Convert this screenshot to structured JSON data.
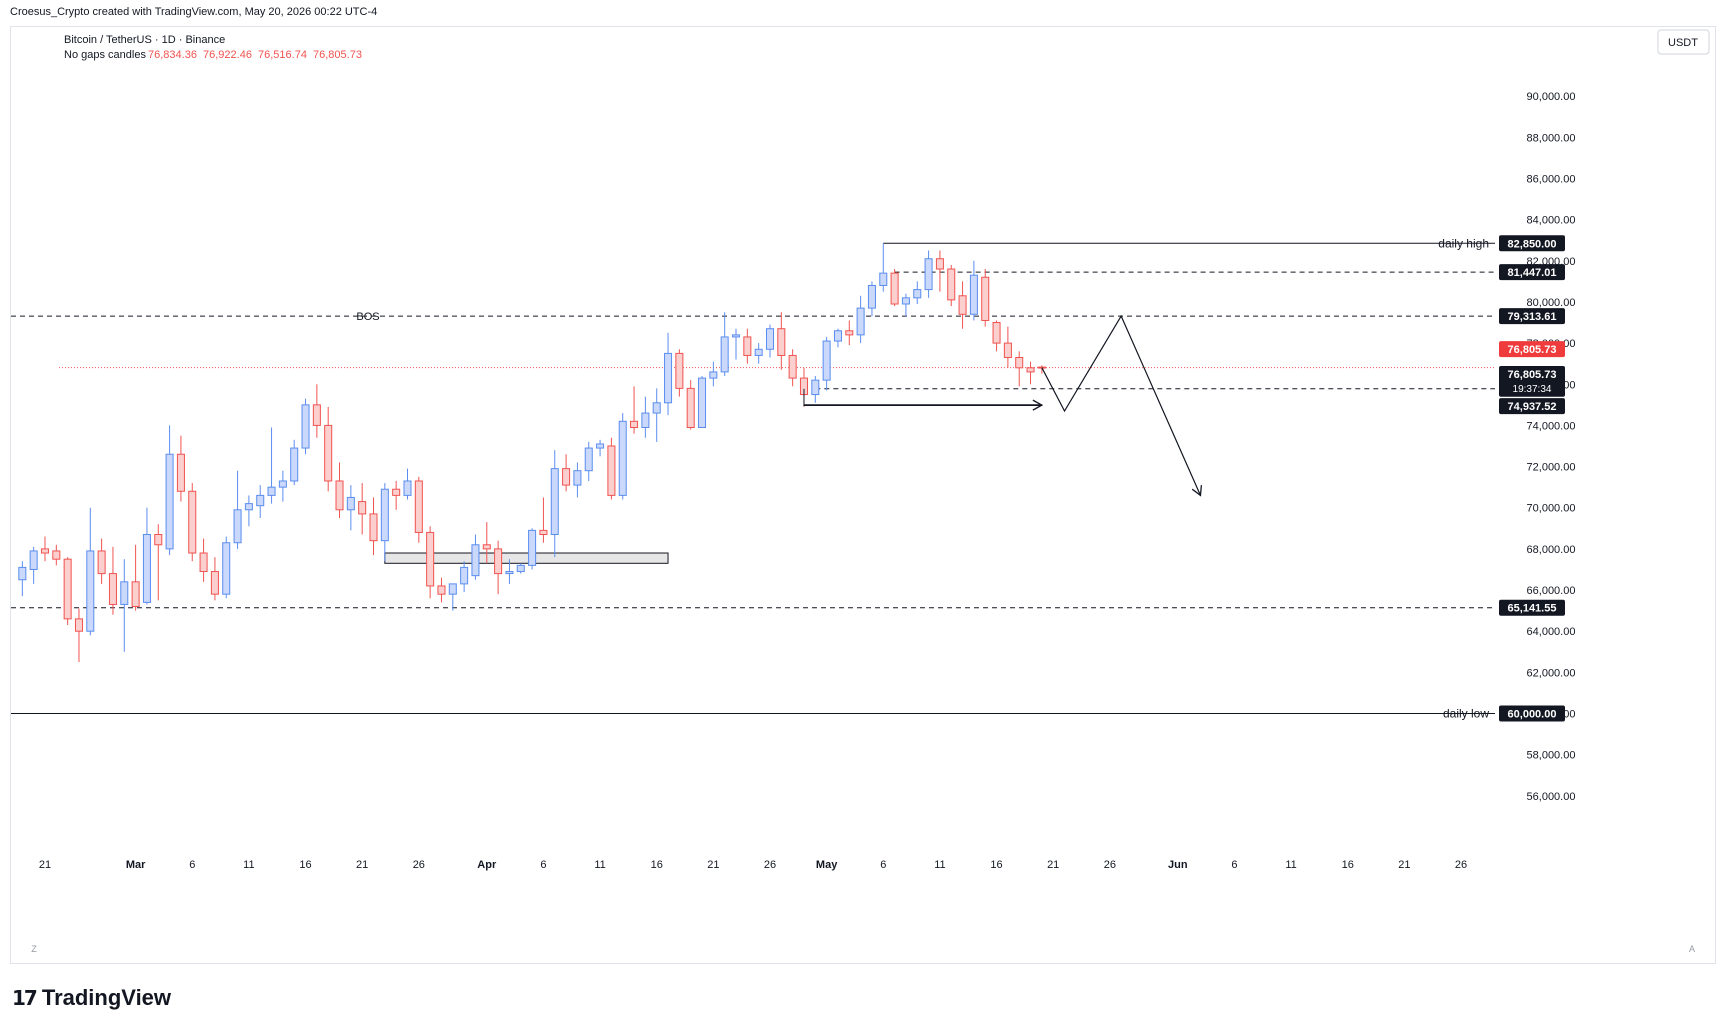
{
  "header": {
    "attribution": "Croesus_Crypto created with TradingView.com, May 20, 2026 00:22 UTC-4"
  },
  "footer": {
    "logo_mark": "𝟭𝟳",
    "logo_text": "TradingView"
  },
  "legend": {
    "symbol": "Bitcoin / TetherUS · 1D · Binance",
    "candle_type": "No gaps candles",
    "open": "76,834.36",
    "high": "76,922.46",
    "low": "76,516.74",
    "close": "76,805.73"
  },
  "currency_button": "USDT",
  "axis_corner_left": "Z",
  "axis_corner_right": "A",
  "colors": {
    "up": "#5b8def",
    "down": "#f05350",
    "text": "#131722",
    "price_tag": "#ef3b3b",
    "grid": "#e0e3eb"
  },
  "chart_data": {
    "type": "candlestick",
    "title": "Bitcoin / TetherUS · 1D · Binance",
    "ylim": [
      54000,
      92000
    ],
    "y_ticks": [
      "90,000.00",
      "88,000.00",
      "86,000.00",
      "84,000.00",
      "82,000.00",
      "80,000.00",
      "78,000.00",
      "76,000.00",
      "74,000.00",
      "72,000.00",
      "70,000.00",
      "68,000.00",
      "66,000.00",
      "64,000.00",
      "62,000.00",
      "60,000.00",
      "58,000.00",
      "56,000.00"
    ],
    "x_range": [
      "2026-02-18",
      "2026-06-29"
    ],
    "x_ticks": [
      {
        "date": "2026-02-21",
        "label": "21"
      },
      {
        "date": "2026-03-01",
        "label": "Mar"
      },
      {
        "date": "2026-03-06",
        "label": "6"
      },
      {
        "date": "2026-03-11",
        "label": "11"
      },
      {
        "date": "2026-03-16",
        "label": "16"
      },
      {
        "date": "2026-03-21",
        "label": "21"
      },
      {
        "date": "2026-03-26",
        "label": "26"
      },
      {
        "date": "2026-04-01",
        "label": "Apr"
      },
      {
        "date": "2026-04-06",
        "label": "6"
      },
      {
        "date": "2026-04-11",
        "label": "11"
      },
      {
        "date": "2026-04-16",
        "label": "16"
      },
      {
        "date": "2026-04-21",
        "label": "21"
      },
      {
        "date": "2026-04-26",
        "label": "26"
      },
      {
        "date": "2026-05-01",
        "label": "May"
      },
      {
        "date": "2026-05-06",
        "label": "6"
      },
      {
        "date": "2026-05-11",
        "label": "11"
      },
      {
        "date": "2026-05-16",
        "label": "16"
      },
      {
        "date": "2026-05-21",
        "label": "21"
      },
      {
        "date": "2026-05-26",
        "label": "26"
      },
      {
        "date": "2026-06-01",
        "label": "Jun"
      },
      {
        "date": "2026-06-06",
        "label": "6"
      },
      {
        "date": "2026-06-11",
        "label": "11"
      },
      {
        "date": "2026-06-16",
        "label": "16"
      },
      {
        "date": "2026-06-21",
        "label": "21"
      },
      {
        "date": "2026-06-26",
        "label": "26"
      }
    ],
    "candles": [
      {
        "date": "2026-02-19",
        "o": 66500,
        "h": 67400,
        "l": 65700,
        "c": 67100
      },
      {
        "date": "2026-02-20",
        "o": 67000,
        "h": 68100,
        "l": 66300,
        "c": 67900
      },
      {
        "date": "2026-02-21",
        "o": 68000,
        "h": 68600,
        "l": 67400,
        "c": 67800
      },
      {
        "date": "2026-02-22",
        "o": 67900,
        "h": 68200,
        "l": 67200,
        "c": 67500
      },
      {
        "date": "2026-02-23",
        "o": 67500,
        "h": 67600,
        "l": 64300,
        "c": 64600
      },
      {
        "date": "2026-02-24",
        "o": 64600,
        "h": 65100,
        "l": 62500,
        "c": 64000
      },
      {
        "date": "2026-02-25",
        "o": 64000,
        "h": 70000,
        "l": 63800,
        "c": 67900
      },
      {
        "date": "2026-02-26",
        "o": 67900,
        "h": 68500,
        "l": 66300,
        "c": 66800
      },
      {
        "date": "2026-02-27",
        "o": 66800,
        "h": 68100,
        "l": 64800,
        "c": 65300
      },
      {
        "date": "2026-02-28",
        "o": 65300,
        "h": 67500,
        "l": 63000,
        "c": 66400
      },
      {
        "date": "2026-03-01",
        "o": 66400,
        "h": 68200,
        "l": 65000,
        "c": 65200
      },
      {
        "date": "2026-03-02",
        "o": 65400,
        "h": 70000,
        "l": 65300,
        "c": 68700
      },
      {
        "date": "2026-03-03",
        "o": 68700,
        "h": 69200,
        "l": 65500,
        "c": 68200
      },
      {
        "date": "2026-03-04",
        "o": 68000,
        "h": 74000,
        "l": 67700,
        "c": 72600
      },
      {
        "date": "2026-03-05",
        "o": 72600,
        "h": 73500,
        "l": 70300,
        "c": 70800
      },
      {
        "date": "2026-03-06",
        "o": 70800,
        "h": 71200,
        "l": 67400,
        "c": 67800
      },
      {
        "date": "2026-03-07",
        "o": 67800,
        "h": 68500,
        "l": 66400,
        "c": 66900
      },
      {
        "date": "2026-03-08",
        "o": 66900,
        "h": 67600,
        "l": 65500,
        "c": 65800
      },
      {
        "date": "2026-03-09",
        "o": 65800,
        "h": 68600,
        "l": 65600,
        "c": 68300
      },
      {
        "date": "2026-03-10",
        "o": 68300,
        "h": 71800,
        "l": 68000,
        "c": 69900
      },
      {
        "date": "2026-03-11",
        "o": 69900,
        "h": 70600,
        "l": 69100,
        "c": 70200
      },
      {
        "date": "2026-03-12",
        "o": 70100,
        "h": 71100,
        "l": 69500,
        "c": 70600
      },
      {
        "date": "2026-03-13",
        "o": 70600,
        "h": 73900,
        "l": 70200,
        "c": 71000
      },
      {
        "date": "2026-03-14",
        "o": 71000,
        "h": 71800,
        "l": 70300,
        "c": 71300
      },
      {
        "date": "2026-03-15",
        "o": 71300,
        "h": 73300,
        "l": 71100,
        "c": 72900
      },
      {
        "date": "2026-03-16",
        "o": 72900,
        "h": 75300,
        "l": 72600,
        "c": 75000
      },
      {
        "date": "2026-03-17",
        "o": 75000,
        "h": 76000,
        "l": 73400,
        "c": 74000
      },
      {
        "date": "2026-03-18",
        "o": 74000,
        "h": 74900,
        "l": 70800,
        "c": 71300
      },
      {
        "date": "2026-03-19",
        "o": 71300,
        "h": 72200,
        "l": 69500,
        "c": 69900
      },
      {
        "date": "2026-03-20",
        "o": 69900,
        "h": 71100,
        "l": 68900,
        "c": 70500
      },
      {
        "date": "2026-03-21",
        "o": 70300,
        "h": 71200,
        "l": 68700,
        "c": 69700
      },
      {
        "date": "2026-03-22",
        "o": 69700,
        "h": 70500,
        "l": 67700,
        "c": 68400
      },
      {
        "date": "2026-03-23",
        "o": 68400,
        "h": 71200,
        "l": 67400,
        "c": 70900
      },
      {
        "date": "2026-03-24",
        "o": 70900,
        "h": 71300,
        "l": 69900,
        "c": 70600
      },
      {
        "date": "2026-03-25",
        "o": 70600,
        "h": 71900,
        "l": 70400,
        "c": 71300
      },
      {
        "date": "2026-03-26",
        "o": 71300,
        "h": 71500,
        "l": 68300,
        "c": 68800
      },
      {
        "date": "2026-03-27",
        "o": 68800,
        "h": 69100,
        "l": 65600,
        "c": 66200
      },
      {
        "date": "2026-03-28",
        "o": 66200,
        "h": 66600,
        "l": 65400,
        "c": 65800
      },
      {
        "date": "2026-03-29",
        "o": 65800,
        "h": 66300,
        "l": 65000,
        "c": 66300
      },
      {
        "date": "2026-03-30",
        "o": 66300,
        "h": 67400,
        "l": 65900,
        "c": 67100
      },
      {
        "date": "2026-03-31",
        "o": 66700,
        "h": 68700,
        "l": 66500,
        "c": 68200
      },
      {
        "date": "2026-04-01",
        "o": 68200,
        "h": 69300,
        "l": 67300,
        "c": 68000
      },
      {
        "date": "2026-04-02",
        "o": 68000,
        "h": 68400,
        "l": 65800,
        "c": 66800
      },
      {
        "date": "2026-04-03",
        "o": 66800,
        "h": 67500,
        "l": 66300,
        "c": 66900
      },
      {
        "date": "2026-04-04",
        "o": 66900,
        "h": 67300,
        "l": 66800,
        "c": 67200
      },
      {
        "date": "2026-04-05",
        "o": 67200,
        "h": 69000,
        "l": 67000,
        "c": 68900
      },
      {
        "date": "2026-04-06",
        "o": 68900,
        "h": 70500,
        "l": 68300,
        "c": 68700
      },
      {
        "date": "2026-04-07",
        "o": 68700,
        "h": 72800,
        "l": 67600,
        "c": 71900
      },
      {
        "date": "2026-04-08",
        "o": 71900,
        "h": 72600,
        "l": 70800,
        "c": 71100
      },
      {
        "date": "2026-04-09",
        "o": 71100,
        "h": 72200,
        "l": 70500,
        "c": 71800
      },
      {
        "date": "2026-04-10",
        "o": 71800,
        "h": 73200,
        "l": 71300,
        "c": 72900
      },
      {
        "date": "2026-04-11",
        "o": 72900,
        "h": 73300,
        "l": 72500,
        "c": 73100
      },
      {
        "date": "2026-04-12",
        "o": 73000,
        "h": 73400,
        "l": 70400,
        "c": 70600
      },
      {
        "date": "2026-04-13",
        "o": 70600,
        "h": 74600,
        "l": 70400,
        "c": 74200
      },
      {
        "date": "2026-04-14",
        "o": 74200,
        "h": 75900,
        "l": 73600,
        "c": 73900
      },
      {
        "date": "2026-04-15",
        "o": 73900,
        "h": 75400,
        "l": 73400,
        "c": 74600
      },
      {
        "date": "2026-04-16",
        "o": 74600,
        "h": 75800,
        "l": 73200,
        "c": 75100
      },
      {
        "date": "2026-04-17",
        "o": 75100,
        "h": 78500,
        "l": 74500,
        "c": 77500
      },
      {
        "date": "2026-04-18",
        "o": 77500,
        "h": 77700,
        "l": 75400,
        "c": 75800
      },
      {
        "date": "2026-04-19",
        "o": 75800,
        "h": 76200,
        "l": 73800,
        "c": 73900
      },
      {
        "date": "2026-04-20",
        "o": 73900,
        "h": 76400,
        "l": 73900,
        "c": 76300
      },
      {
        "date": "2026-04-21",
        "o": 76300,
        "h": 77100,
        "l": 75900,
        "c": 76600
      },
      {
        "date": "2026-04-22",
        "o": 76600,
        "h": 79500,
        "l": 76400,
        "c": 78300
      },
      {
        "date": "2026-04-23",
        "o": 78300,
        "h": 78700,
        "l": 77200,
        "c": 78400
      },
      {
        "date": "2026-04-24",
        "o": 78300,
        "h": 78700,
        "l": 77000,
        "c": 77400
      },
      {
        "date": "2026-04-25",
        "o": 77400,
        "h": 78000,
        "l": 77000,
        "c": 77700
      },
      {
        "date": "2026-04-26",
        "o": 77700,
        "h": 78900,
        "l": 77300,
        "c": 78700
      },
      {
        "date": "2026-04-27",
        "o": 78700,
        "h": 79500,
        "l": 76700,
        "c": 77400
      },
      {
        "date": "2026-04-28",
        "o": 77400,
        "h": 77700,
        "l": 75900,
        "c": 76300
      },
      {
        "date": "2026-04-29",
        "o": 76300,
        "h": 76800,
        "l": 74900,
        "c": 75500
      },
      {
        "date": "2026-04-30",
        "o": 75500,
        "h": 76400,
        "l": 75100,
        "c": 76200
      },
      {
        "date": "2026-05-01",
        "o": 76200,
        "h": 78300,
        "l": 75700,
        "c": 78100
      },
      {
        "date": "2026-05-02",
        "o": 78100,
        "h": 78700,
        "l": 77800,
        "c": 78600
      },
      {
        "date": "2026-05-03",
        "o": 78600,
        "h": 79100,
        "l": 77900,
        "c": 78400
      },
      {
        "date": "2026-05-04",
        "o": 78400,
        "h": 80300,
        "l": 78000,
        "c": 79700
      },
      {
        "date": "2026-05-05",
        "o": 79700,
        "h": 81000,
        "l": 79300,
        "c": 80800
      },
      {
        "date": "2026-05-06",
        "o": 80800,
        "h": 82850,
        "l": 80500,
        "c": 81400
      },
      {
        "date": "2026-05-07",
        "o": 81400,
        "h": 81600,
        "l": 79800,
        "c": 79900
      },
      {
        "date": "2026-05-08",
        "o": 79900,
        "h": 80400,
        "l": 79300,
        "c": 80200
      },
      {
        "date": "2026-05-09",
        "o": 80200,
        "h": 81000,
        "l": 79900,
        "c": 80600
      },
      {
        "date": "2026-05-10",
        "o": 80600,
        "h": 82500,
        "l": 80200,
        "c": 82100
      },
      {
        "date": "2026-05-11",
        "o": 82100,
        "h": 82500,
        "l": 80500,
        "c": 81600
      },
      {
        "date": "2026-05-12",
        "o": 81600,
        "h": 81800,
        "l": 79800,
        "c": 80100
      },
      {
        "date": "2026-05-13",
        "o": 80300,
        "h": 81000,
        "l": 78700,
        "c": 79400
      },
      {
        "date": "2026-05-14",
        "o": 79400,
        "h": 82000,
        "l": 79100,
        "c": 81300
      },
      {
        "date": "2026-05-15",
        "o": 81200,
        "h": 81600,
        "l": 78800,
        "c": 79100
      },
      {
        "date": "2026-05-16",
        "o": 79000,
        "h": 79100,
        "l": 77600,
        "c": 78000
      },
      {
        "date": "2026-05-17",
        "o": 78000,
        "h": 78800,
        "l": 76800,
        "c": 77300
      },
      {
        "date": "2026-05-18",
        "o": 77300,
        "h": 77600,
        "l": 75900,
        "c": 76800
      },
      {
        "date": "2026-05-19",
        "o": 76800,
        "h": 77100,
        "l": 76000,
        "c": 76600
      },
      {
        "date": "2026-05-20",
        "o": 76834.36,
        "h": 76922.46,
        "l": 76516.74,
        "c": 76805.73
      }
    ],
    "price_levels": [
      {
        "value": 82850,
        "label": "82,850.00",
        "style": "solid",
        "start": "2026-05-06",
        "text": "daily high"
      },
      {
        "value": 81447.01,
        "label": "81,447.01",
        "style": "dashed",
        "start": "2026-05-07"
      },
      {
        "value": 79313.61,
        "label": "79,313.61",
        "style": "dashed",
        "start": "2026-02-18",
        "text": "BOS"
      },
      {
        "value": 75780,
        "label": "75,780.00",
        "style": "dashed",
        "start": "2026-04-30"
      },
      {
        "value": 65141.55,
        "label": "65,141.55",
        "style": "dashed",
        "start": "2026-02-18"
      },
      {
        "value": 60000,
        "label": "60,000.00",
        "style": "solid",
        "start": "2026-02-18",
        "text": "daily low"
      }
    ],
    "extra_price_tags": [
      {
        "value": 76805.73,
        "label": "76,805.73",
        "kind": "last-price"
      },
      {
        "value": 76000,
        "label": "76,805.73",
        "sub": "19:37:34",
        "kind": "countdown"
      },
      {
        "value": 74937.52,
        "label": "74,937.52",
        "kind": "level"
      }
    ],
    "zone": {
      "from": "2026-03-23",
      "to": "2026-04-17",
      "top": 67800,
      "bottom": 67300
    },
    "arrow_right": {
      "from": "2026-04-29",
      "to": "2026-05-20",
      "start_y": 74937.52,
      "end_y": 74937.52
    },
    "projection": [
      {
        "date": "2026-05-20",
        "price": 76805.73
      },
      {
        "date": "2026-05-22",
        "price": 74700
      },
      {
        "date": "2026-05-27",
        "price": 79313.61
      },
      {
        "date": "2026-06-03",
        "price": 70600
      }
    ]
  }
}
